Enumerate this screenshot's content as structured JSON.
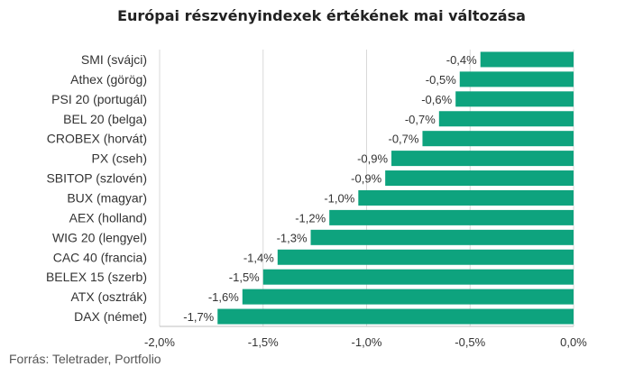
{
  "title": "Európai részvényindexek értékének mai változása",
  "source": "Forrás: Teletrader, Portfolio",
  "colors": {
    "bar": "#0ea37e",
    "grid": "#d9d9d9",
    "text": "#333333"
  },
  "chart_data": {
    "type": "bar",
    "orientation": "horizontal",
    "title": "Európai részvényindexek értékének mai változása",
    "categories": [
      "SMI (svájci)",
      "Athex (görög)",
      "PSI 20 (portugál)",
      "BEL 20 (belga)",
      "CROBEX (horvát)",
      "PX (cseh)",
      "SBITOP (szlovén)",
      "BUX (magyar)",
      "AEX (holland)",
      "WIG 20 (lengyel)",
      "CAC 40 (francia)",
      "BELEX 15 (szerb)",
      "ATX (osztrák)",
      "DAX (német)"
    ],
    "values": [
      -0.45,
      -0.55,
      -0.57,
      -0.65,
      -0.73,
      -0.88,
      -0.91,
      -1.04,
      -1.18,
      -1.27,
      -1.43,
      -1.5,
      -1.6,
      -1.72
    ],
    "data_labels": [
      "-0,4%",
      "-0,5%",
      "-0,6%",
      "-0,7%",
      "-0,7%",
      "-0,9%",
      "-0,9%",
      "-1,0%",
      "-1,2%",
      "-1,3%",
      "-1,4%",
      "-1,5%",
      "-1,6%",
      "-1,7%"
    ],
    "xlim": [
      -2.0,
      0.0
    ],
    "xticks": [
      -2.0,
      -1.5,
      -1.0,
      -0.5,
      0.0
    ],
    "xtick_labels": [
      "-2,0%",
      "-1,5%",
      "-1,0%",
      "-0,5%",
      "0,0%"
    ],
    "xlabel": "",
    "ylabel": "",
    "grid": true,
    "legend": "none"
  }
}
